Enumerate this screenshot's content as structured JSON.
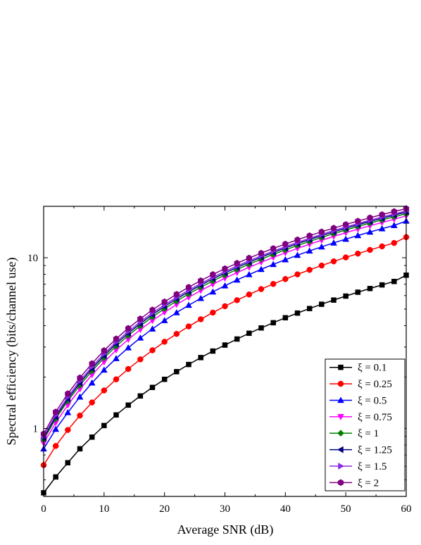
{
  "chart_data": {
    "type": "line",
    "title": "",
    "xlabel": "Average SNR (dB)",
    "ylabel": "Spectral efficiency (bits/channel use)",
    "xlim": [
      0,
      60
    ],
    "ylim": [
      0.4,
      20
    ],
    "yscale": "log",
    "x_ticks": [
      0,
      10,
      20,
      30,
      40,
      50,
      60
    ],
    "y_ticks": [
      1,
      10
    ],
    "legend_position": "bottom-right",
    "grid": false,
    "x": [
      0,
      2,
      4,
      6,
      8,
      10,
      12,
      14,
      16,
      18,
      20,
      22,
      24,
      26,
      28,
      30,
      32,
      34,
      36,
      38,
      40,
      42,
      44,
      46,
      48,
      50,
      52,
      54,
      56,
      58,
      60
    ],
    "series": [
      {
        "name": "ξ = 0.1",
        "color": "#000000",
        "marker": "square",
        "values": [
          0.42,
          0.52,
          0.63,
          0.76,
          0.89,
          1.04,
          1.2,
          1.37,
          1.55,
          1.74,
          1.94,
          2.15,
          2.37,
          2.6,
          2.84,
          3.08,
          3.34,
          3.61,
          3.88,
          4.16,
          4.45,
          4.74,
          5.04,
          5.34,
          5.65,
          5.96,
          6.28,
          6.6,
          6.93,
          7.26,
          7.9
        ]
      },
      {
        "name": "ξ = 0.25",
        "color": "#ff0000",
        "marker": "circle",
        "values": [
          0.61,
          0.79,
          0.98,
          1.19,
          1.42,
          1.67,
          1.94,
          2.23,
          2.54,
          2.87,
          3.22,
          3.58,
          3.96,
          4.36,
          4.77,
          5.2,
          5.64,
          6.09,
          6.55,
          7.02,
          7.5,
          7.99,
          8.49,
          9.0,
          9.52,
          10.04,
          10.57,
          11.11,
          11.65,
          12.2,
          13.2
        ]
      },
      {
        "name": "ξ = 0.5",
        "color": "#0000ff",
        "marker": "triangle-up",
        "values": [
          0.76,
          0.99,
          1.24,
          1.53,
          1.85,
          2.2,
          2.57,
          2.97,
          3.39,
          3.83,
          4.29,
          4.77,
          5.27,
          5.78,
          6.31,
          6.85,
          7.41,
          7.97,
          8.55,
          9.14,
          9.74,
          10.34,
          10.96,
          11.58,
          12.21,
          12.85,
          13.49,
          14.14,
          14.8,
          15.46,
          16.4
        ]
      },
      {
        "name": "ξ = 0.75",
        "color": "#ff00ff",
        "marker": "triangle-down",
        "values": [
          0.82,
          1.08,
          1.37,
          1.7,
          2.06,
          2.45,
          2.88,
          3.32,
          3.79,
          4.28,
          4.79,
          5.32,
          5.86,
          6.42,
          6.99,
          7.58,
          8.18,
          8.79,
          9.41,
          10.04,
          10.68,
          11.33,
          11.99,
          12.65,
          13.33,
          14.01,
          14.69,
          15.39,
          16.08,
          16.79,
          17.6
        ]
      },
      {
        "name": "ξ = 1",
        "color": "#008000",
        "marker": "diamond",
        "values": [
          0.86,
          1.14,
          1.45,
          1.79,
          2.17,
          2.59,
          3.03,
          3.5,
          3.99,
          4.5,
          5.03,
          5.57,
          6.14,
          6.72,
          7.31,
          7.92,
          8.54,
          9.17,
          9.81,
          10.46,
          11.12,
          11.79,
          12.46,
          13.15,
          13.84,
          14.53,
          15.24,
          15.94,
          16.66,
          17.38,
          18.1
        ]
      },
      {
        "name": "ξ = 1.25",
        "color": "#000080",
        "marker": "triangle-left",
        "values": [
          0.88,
          1.17,
          1.49,
          1.85,
          2.24,
          2.67,
          3.13,
          3.61,
          4.11,
          4.64,
          5.18,
          5.74,
          6.32,
          6.91,
          7.52,
          8.14,
          8.77,
          9.41,
          10.07,
          10.73,
          11.4,
          12.08,
          12.77,
          13.46,
          14.17,
          14.87,
          15.59,
          16.31,
          17.03,
          17.76,
          18.5
        ]
      },
      {
        "name": "ξ = 1.5",
        "color": "#8a2be2",
        "marker": "triangle-right",
        "values": [
          0.9,
          1.2,
          1.53,
          1.9,
          2.3,
          2.74,
          3.21,
          3.7,
          4.21,
          4.75,
          5.3,
          5.87,
          6.46,
          7.06,
          7.68,
          8.31,
          8.95,
          9.6,
          10.26,
          10.93,
          11.61,
          12.3,
          13.0,
          13.7,
          14.41,
          15.13,
          15.85,
          16.58,
          17.31,
          18.05,
          18.8
        ]
      },
      {
        "name": "ξ = 2",
        "color": "#800080",
        "marker": "hexagon",
        "values": [
          0.93,
          1.25,
          1.6,
          1.98,
          2.4,
          2.86,
          3.35,
          3.86,
          4.39,
          4.95,
          5.52,
          6.11,
          6.72,
          7.34,
          7.98,
          8.63,
          9.29,
          9.96,
          10.64,
          11.33,
          12.03,
          12.74,
          13.46,
          14.18,
          14.91,
          15.65,
          16.39,
          17.14,
          17.89,
          18.65,
          19.4
        ]
      }
    ]
  }
}
